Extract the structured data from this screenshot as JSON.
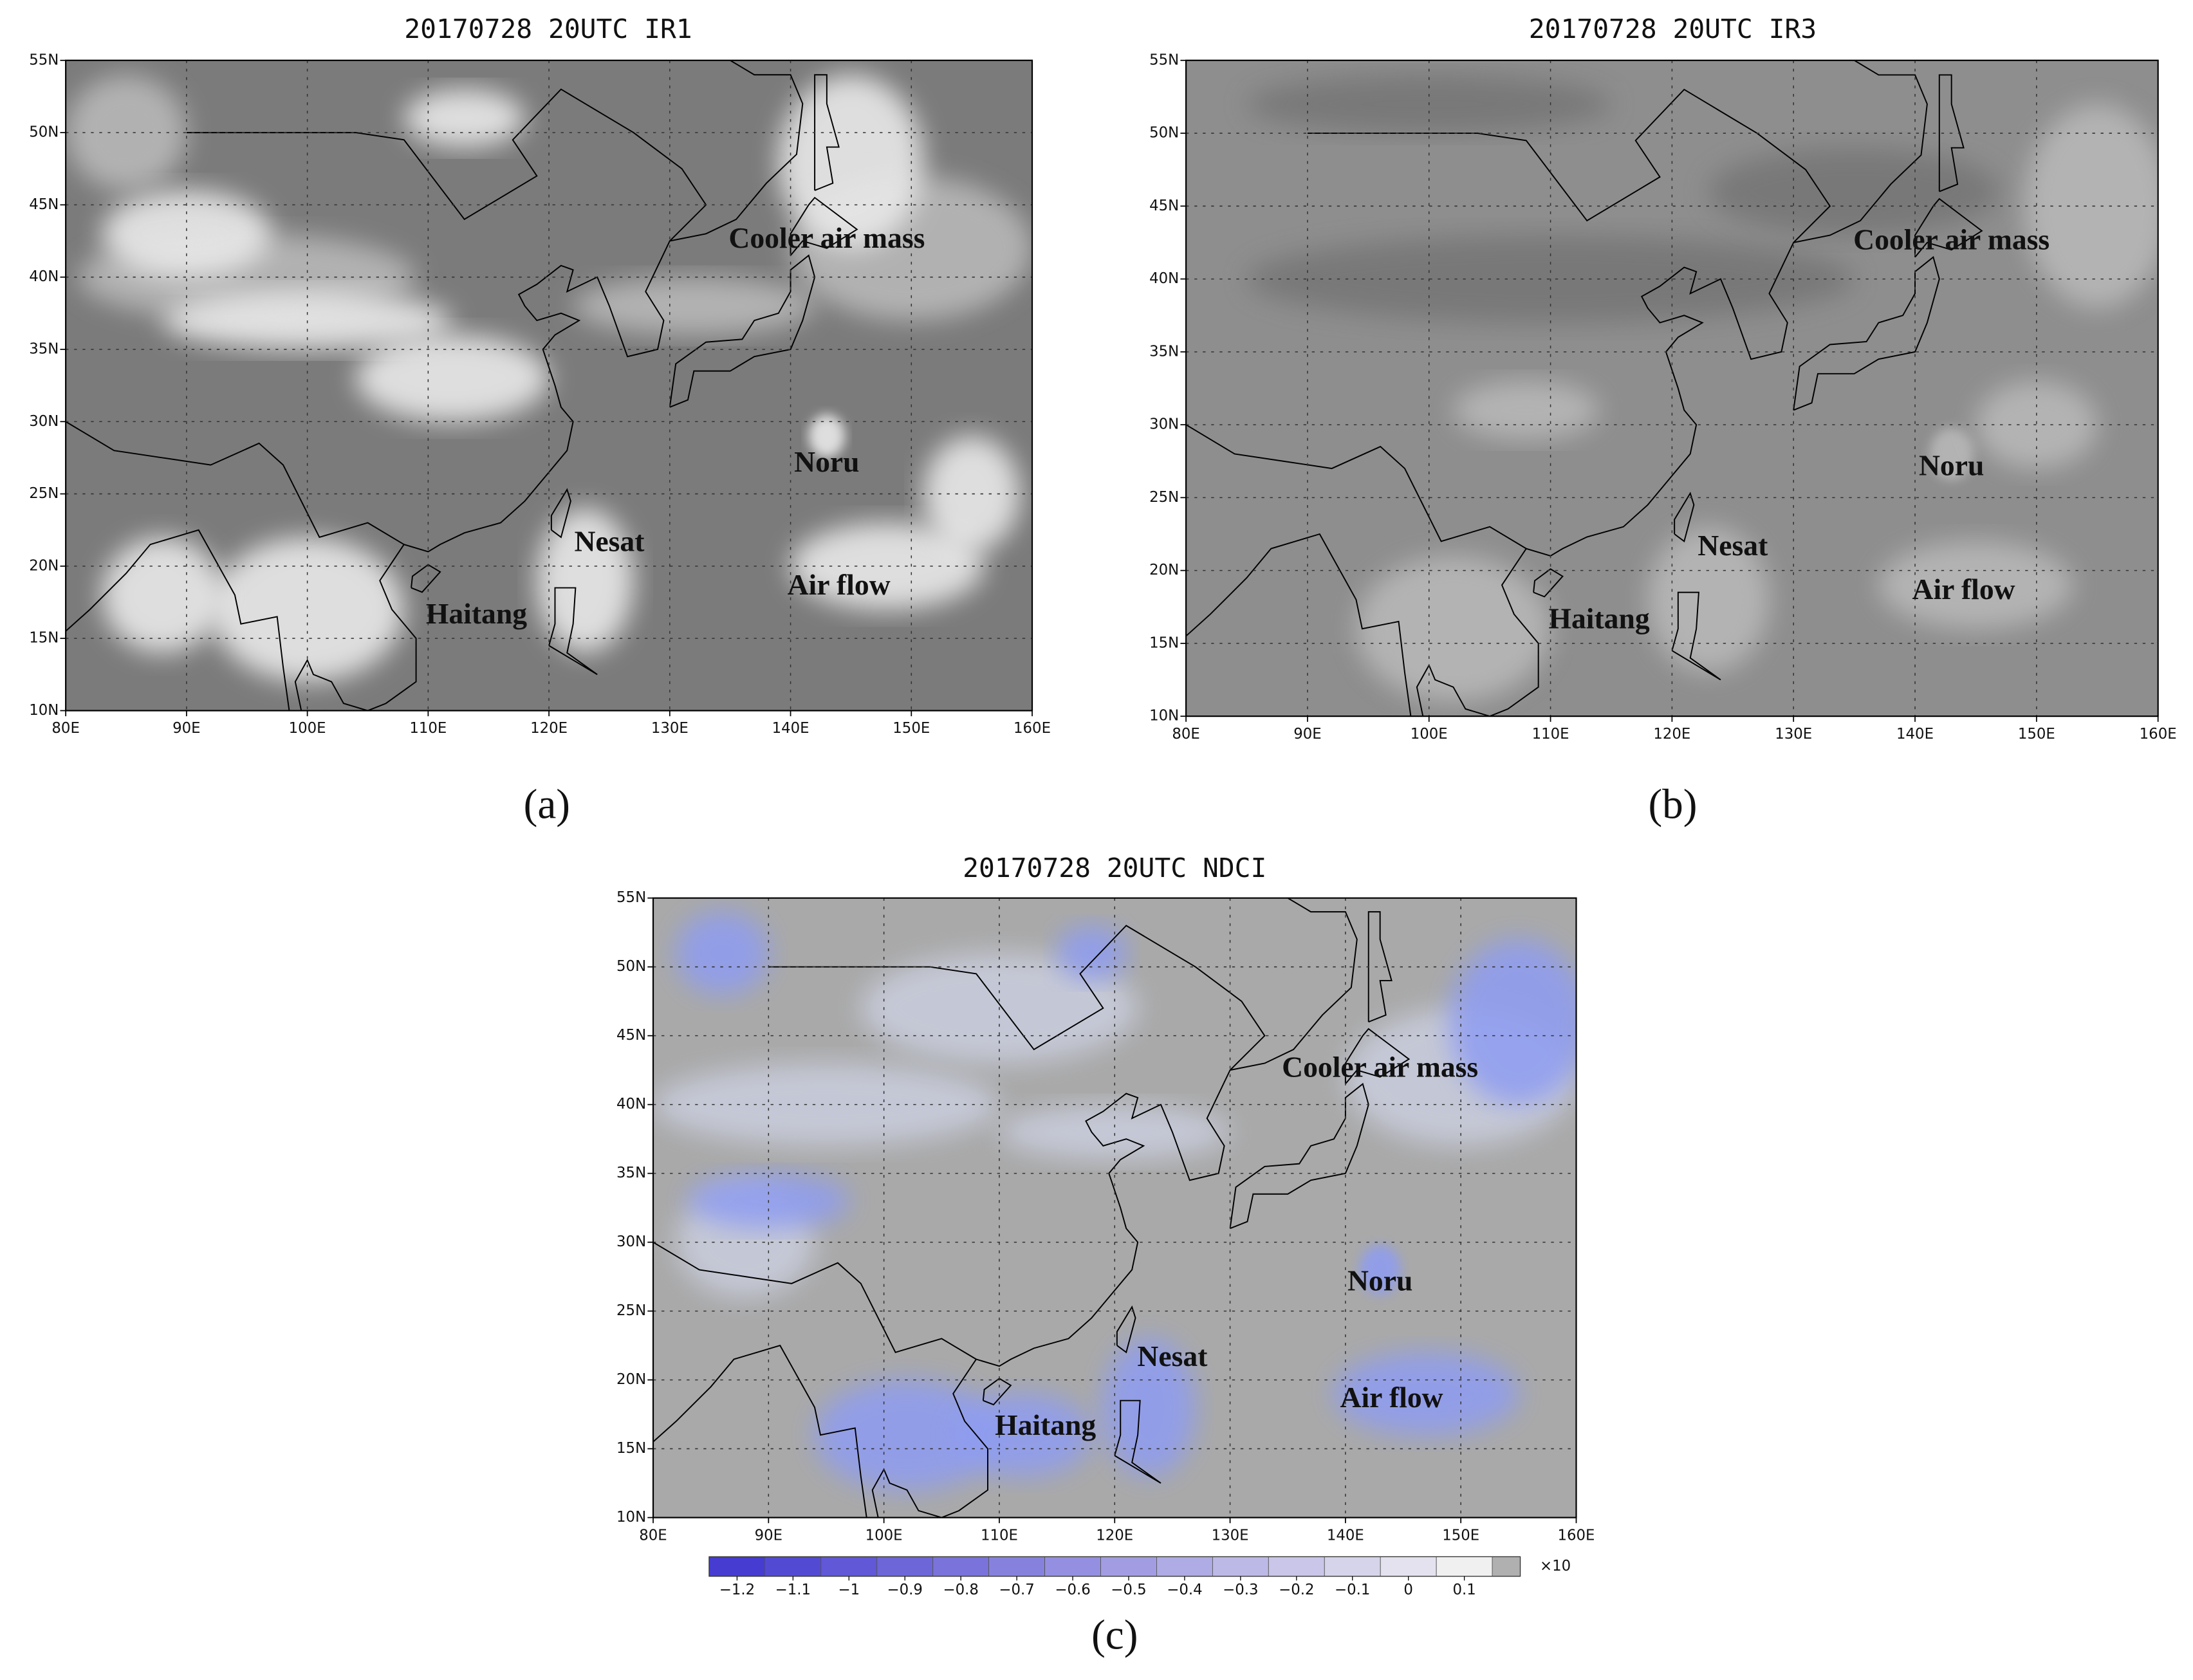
{
  "panels": [
    {
      "title": "20170728 20UTC IR1",
      "label": "(a)",
      "xlim": [
        80,
        160
      ],
      "ylim": [
        10,
        55
      ],
      "xticks": [
        {
          "value": 80,
          "label": "80E"
        },
        {
          "value": 90,
          "label": "90E"
        },
        {
          "value": 100,
          "label": "100E"
        },
        {
          "value": 110,
          "label": "110E"
        },
        {
          "value": 120,
          "label": "120E"
        },
        {
          "value": 130,
          "label": "130E"
        },
        {
          "value": 140,
          "label": "140E"
        },
        {
          "value": 150,
          "label": "150E"
        },
        {
          "value": 160,
          "label": "160E"
        }
      ],
      "yticks": [
        {
          "value": 10,
          "label": "10N"
        },
        {
          "value": 15,
          "label": "15N"
        },
        {
          "value": 20,
          "label": "20N"
        },
        {
          "value": 25,
          "label": "25N"
        },
        {
          "value": 30,
          "label": "30N"
        },
        {
          "value": 35,
          "label": "35N"
        },
        {
          "value": 40,
          "label": "40N"
        },
        {
          "value": 45,
          "label": "45N"
        },
        {
          "value": 50,
          "label": "50N"
        },
        {
          "value": 55,
          "label": "55N"
        }
      ],
      "annotations": [
        "Cooler air mass",
        "Noru",
        "Nesat",
        "Air flow",
        "Haitang"
      ]
    },
    {
      "title": "20170728 20UTC IR3",
      "label": "(b)",
      "xlim": [
        80,
        160
      ],
      "ylim": [
        10,
        55
      ],
      "xticks": [
        {
          "value": 80,
          "label": "80E"
        },
        {
          "value": 90,
          "label": "90E"
        },
        {
          "value": 100,
          "label": "100E"
        },
        {
          "value": 110,
          "label": "110E"
        },
        {
          "value": 120,
          "label": "120E"
        },
        {
          "value": 130,
          "label": "130E"
        },
        {
          "value": 140,
          "label": "140E"
        },
        {
          "value": 150,
          "label": "150E"
        },
        {
          "value": 160,
          "label": "160E"
        }
      ],
      "yticks": [
        {
          "value": 10,
          "label": "10N"
        },
        {
          "value": 15,
          "label": "15N"
        },
        {
          "value": 20,
          "label": "20N"
        },
        {
          "value": 25,
          "label": "25N"
        },
        {
          "value": 30,
          "label": "30N"
        },
        {
          "value": 35,
          "label": "35N"
        },
        {
          "value": 40,
          "label": "40N"
        },
        {
          "value": 45,
          "label": "45N"
        },
        {
          "value": 50,
          "label": "50N"
        },
        {
          "value": 55,
          "label": "55N"
        }
      ],
      "annotations": [
        "Cooler air mass",
        "Noru",
        "Nesat",
        "Air flow",
        "Haitang"
      ]
    },
    {
      "title": "20170728 20UTC NDCI",
      "label": "(c)",
      "xlim": [
        80,
        160
      ],
      "ylim": [
        10,
        55
      ],
      "xticks": [
        {
          "value": 80,
          "label": "80E"
        },
        {
          "value": 90,
          "label": "90E"
        },
        {
          "value": 100,
          "label": "100E"
        },
        {
          "value": 110,
          "label": "110E"
        },
        {
          "value": 120,
          "label": "120E"
        },
        {
          "value": 130,
          "label": "130E"
        },
        {
          "value": 140,
          "label": "140E"
        },
        {
          "value": 150,
          "label": "150E"
        },
        {
          "value": 160,
          "label": "160E"
        }
      ],
      "yticks": [
        {
          "value": 10,
          "label": "10N"
        },
        {
          "value": 15,
          "label": "15N"
        },
        {
          "value": 20,
          "label": "20N"
        },
        {
          "value": 25,
          "label": "25N"
        },
        {
          "value": 30,
          "label": "30N"
        },
        {
          "value": 35,
          "label": "35N"
        },
        {
          "value": 40,
          "label": "40N"
        },
        {
          "value": 45,
          "label": "45N"
        },
        {
          "value": 50,
          "label": "50N"
        },
        {
          "value": 55,
          "label": "55N"
        }
      ],
      "annotations": [
        "Cooler air mass",
        "Noru",
        "Nesat",
        "Air flow",
        "Haitang"
      ]
    }
  ],
  "colorbar": {
    "lim": [
      -1.25,
      0.2
    ],
    "unit": "×10",
    "ticks": [
      {
        "value": -1.2,
        "label": "−1.2"
      },
      {
        "value": -1.1,
        "label": "−1.1"
      },
      {
        "value": -1,
        "label": "−1"
      },
      {
        "value": -0.9,
        "label": "−0.9"
      },
      {
        "value": -0.8,
        "label": "−0.8"
      },
      {
        "value": -0.7,
        "label": "−0.7"
      },
      {
        "value": -0.6,
        "label": "−0.6"
      },
      {
        "value": -0.5,
        "label": "−0.5"
      },
      {
        "value": -0.4,
        "label": "−0.4"
      },
      {
        "value": -0.3,
        "label": "−0.3"
      },
      {
        "value": -0.2,
        "label": "−0.2"
      },
      {
        "value": -0.1,
        "label": "−0.1"
      },
      0,
      0.1
    ]
  }
}
